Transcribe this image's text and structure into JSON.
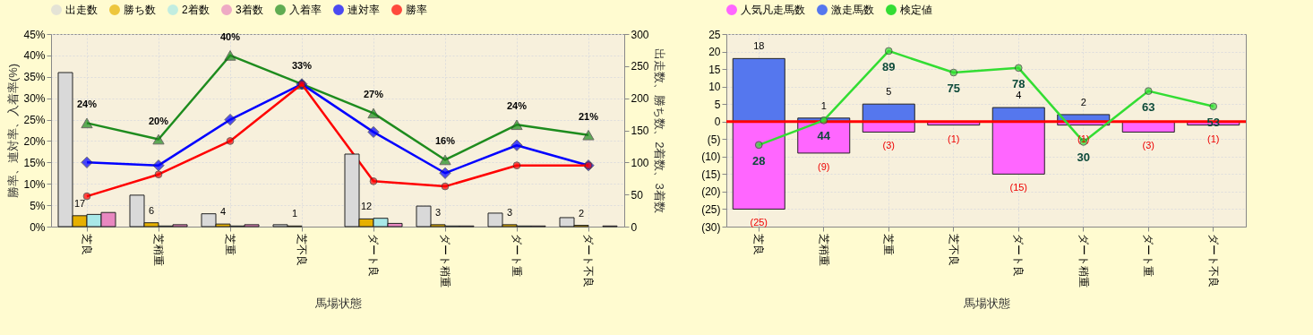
{
  "chart_data": [
    {
      "type": "bar",
      "xlabel": "馬場状態",
      "ylabel": "勝率、連対率、入着率(%)",
      "y2label": "出走数、勝ち数、2着数、3着数",
      "categories": [
        "芝良",
        "芝稍重",
        "芝重",
        "芝不良",
        "ダート良",
        "ダート稍重",
        "ダート重",
        "ダート不良"
      ],
      "ylim": [
        0,
        45
      ],
      "yticks": [
        {
          "value": 0,
          "label": "0%"
        },
        {
          "value": 5,
          "label": "5%"
        },
        {
          "value": 10,
          "label": "10%"
        },
        {
          "value": 15,
          "label": "15%"
        },
        {
          "value": 20,
          "label": "20%"
        },
        {
          "value": 25,
          "label": "25%"
        },
        {
          "value": 30,
          "label": "30%"
        },
        {
          "value": 35,
          "label": "35%"
        },
        {
          "value": 40,
          "label": "40%"
        },
        {
          "value": 45,
          "label": "45%"
        }
      ],
      "y2lim": [
        0,
        300
      ],
      "y2ticks": [
        0,
        50,
        100,
        150,
        200,
        250,
        300
      ],
      "grid": true,
      "legend": "top",
      "series": [
        {
          "name": "出走数",
          "axis": "y2",
          "color": "#d9d9d9",
          "values": [
            240,
            49,
            20,
            3,
            113,
            32,
            21,
            14
          ]
        },
        {
          "name": "勝ち数",
          "axis": "y2",
          "color": "#e6b000",
          "values": [
            17,
            6,
            4,
            1,
            12,
            3,
            3,
            2
          ],
          "value_labels": [
            "17",
            "6",
            "4",
            "1",
            "12",
            "3",
            "3",
            "2"
          ]
        },
        {
          "name": "2着数",
          "axis": "y2",
          "color": "#a8e8e8",
          "values": [
            19,
            1,
            1,
            0,
            13,
            1,
            1,
            0
          ]
        },
        {
          "name": "3着数",
          "axis": "y2",
          "color": "#e888c0",
          "values": [
            22,
            3,
            3,
            0,
            5,
            1,
            1,
            1
          ]
        },
        {
          "name": "入着率",
          "type": "line",
          "color": "#1e8c1e",
          "marker": "triangle",
          "values": [
            24.2,
            20.4,
            40,
            33.3,
            26.5,
            15.6,
            23.8,
            21.4
          ],
          "value_labels": [
            "24%",
            "20%",
            "40%",
            "33%",
            "27%",
            "16%",
            "24%",
            "21%"
          ]
        },
        {
          "name": "連対率",
          "type": "line",
          "color": "#0000ff",
          "marker": "diamond",
          "values": [
            15,
            14.3,
            25,
            33.3,
            22.1,
            12.5,
            19,
            14.3
          ]
        },
        {
          "name": "勝率",
          "type": "line",
          "color": "#ff0000",
          "marker": "circle",
          "values": [
            7.1,
            12.2,
            20,
            33.3,
            10.6,
            9.4,
            14.3,
            14.3
          ]
        }
      ]
    },
    {
      "type": "bar",
      "stacked": true,
      "xlabel": "馬場状態",
      "categories": [
        "芝良",
        "芝稍重",
        "芝重",
        "芝不良",
        "ダート良",
        "ダート稍重",
        "ダート重",
        "ダート不良"
      ],
      "ylim": [
        -30,
        25
      ],
      "yticks": [
        {
          "value": -30,
          "label": "(30)"
        },
        {
          "value": -25,
          "label": "(25)"
        },
        {
          "value": -20,
          "label": "(20)"
        },
        {
          "value": -15,
          "label": "(15)"
        },
        {
          "value": -10,
          "label": "(10)"
        },
        {
          "value": -5,
          "label": "(5)"
        },
        0,
        5,
        10,
        15,
        20,
        25
      ],
      "y2lim": [
        -25,
        100
      ],
      "grid": true,
      "legend": "top",
      "ref_lines": [
        {
          "axis": "y",
          "value": 0,
          "color": "#ff0000"
        }
      ],
      "series": [
        {
          "name": "人気凡走馬数",
          "color": "#ff66ff",
          "values": [
            -25,
            -9,
            -3,
            -1,
            -15,
            -1,
            -3,
            -1
          ],
          "value_labels": [
            "(25)",
            "(9)",
            "(3)",
            "(1)",
            "(15)",
            "(1)",
            "(3)",
            "(1)"
          ]
        },
        {
          "name": "激走馬数",
          "color": "#5577ee",
          "values": [
            18,
            1,
            5,
            null,
            4,
            2,
            null,
            null
          ],
          "value_labels": [
            "18",
            "1",
            "5",
            null,
            "4",
            "2",
            null,
            null
          ]
        },
        {
          "name": "検定値",
          "type": "line",
          "axis": "y2",
          "marker": "circle",
          "color": "#33dd33",
          "values": [
            28,
            44,
            89,
            75,
            78,
            30,
            63,
            53
          ],
          "value_labels": [
            "28",
            "44",
            "89",
            "75",
            "78",
            "30",
            "63",
            "53"
          ]
        }
      ]
    }
  ]
}
